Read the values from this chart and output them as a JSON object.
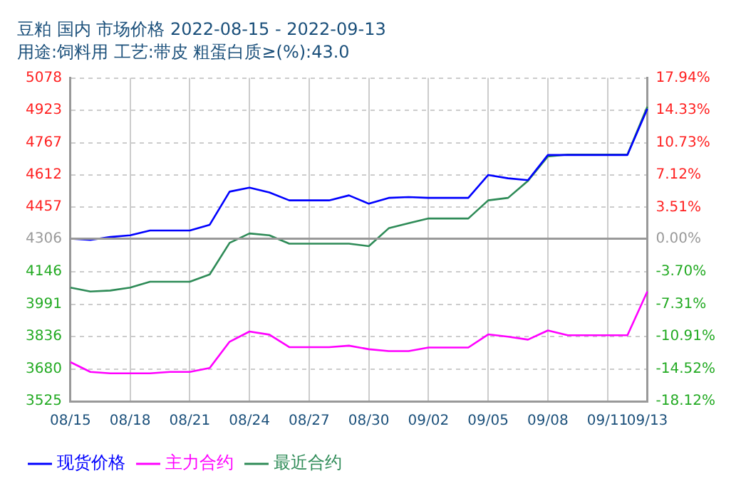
{
  "chart_data": {
    "type": "line",
    "title": "豆粕 国内 市场价格 2022-08-15 - 2022-09-13",
    "subtitle": "用途:饲料用 工艺:带皮 粗蛋白质≥(%):43.0",
    "categories": [
      "08/15",
      null,
      null,
      "08/18",
      null,
      null,
      "08/21",
      null,
      null,
      "08/24",
      null,
      null,
      "08/27",
      null,
      null,
      "08/30",
      null,
      null,
      "09/02",
      null,
      null,
      "09/05",
      null,
      null,
      "09/08",
      null,
      null,
      "09/11",
      null,
      "09/13"
    ],
    "series": [
      {
        "name": "现货价格",
        "color": "#0000ff",
        "values": [
          4306,
          4300,
          4314,
          4322,
          4345,
          4345,
          4345,
          4373,
          4532,
          4551,
          4528,
          4490,
          4490,
          4490,
          4514,
          4474,
          4502,
          4506,
          4502,
          4502,
          4502,
          4612,
          4596,
          4587,
          4708,
          4708,
          4708,
          4708,
          4708,
          4930
        ]
      },
      {
        "name": "主力合约",
        "color": "#ff00ff",
        "values": [
          3713,
          3666,
          3659,
          3659,
          3659,
          3666,
          3666,
          3685,
          3811,
          3860,
          3845,
          3785,
          3785,
          3785,
          3792,
          3775,
          3766,
          3766,
          3783,
          3783,
          3783,
          3846,
          3835,
          3821,
          3865,
          3842,
          3842,
          3842,
          3842,
          4052
        ]
      },
      {
        "name": "最近合约",
        "color": "#2e8b57",
        "values": [
          4071,
          4052,
          4057,
          4071,
          4099,
          4099,
          4099,
          4134,
          4286,
          4331,
          4322,
          4282,
          4282,
          4282,
          4282,
          4270,
          4356,
          4380,
          4403,
          4403,
          4403,
          4490,
          4502,
          4584,
          4701,
          4710,
          4710,
          4710,
          4710,
          4940
        ]
      }
    ],
    "ylim": [
      3525,
      5078
    ],
    "yticks": [
      3525,
      3680,
      3836,
      3991,
      4146,
      4306,
      4457,
      4612,
      4767,
      4923,
      5078
    ],
    "y2lim": [
      -18.12,
      17.94
    ],
    "y2ticks": [
      {
        "value": -18.12,
        "label": "-18.12%"
      },
      {
        "value": -14.52,
        "label": "-14.52%"
      },
      {
        "value": -10.91,
        "label": "-10.91%"
      },
      {
        "value": -7.31,
        "label": "-7.31%"
      },
      {
        "value": -3.7,
        "label": "-3.70%"
      },
      {
        "value": 0,
        "label": "0.00%"
      },
      {
        "value": 3.51,
        "label": "3.51%"
      },
      {
        "value": 7.12,
        "label": "7.12%"
      },
      {
        "value": 10.73,
        "label": "10.73%"
      },
      {
        "value": 14.33,
        "label": "14.33%"
      },
      {
        "value": 17.94,
        "label": "17.94%"
      }
    ],
    "ref_lines": [
      {
        "axis": "y",
        "value": 4306,
        "color": "#999999"
      }
    ],
    "grid": true,
    "legend": "bottom",
    "marker": "none",
    "line_style": "solid"
  }
}
